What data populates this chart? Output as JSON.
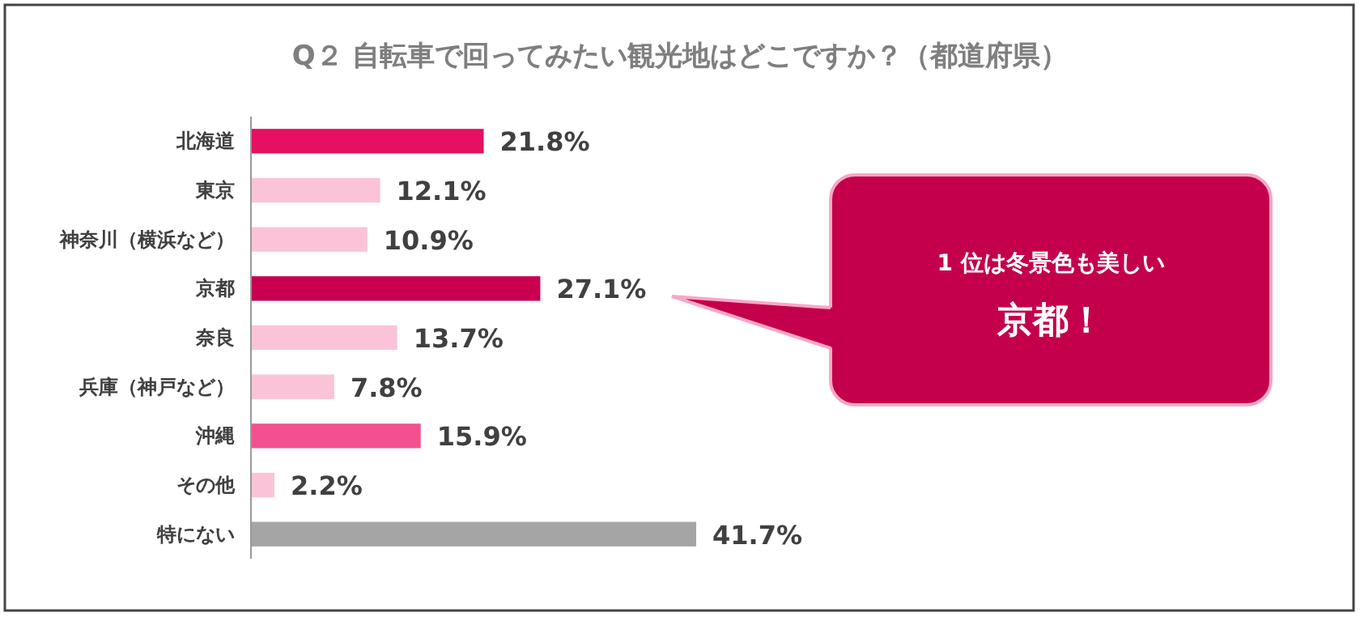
{
  "chart_data": {
    "type": "bar",
    "orientation": "horizontal",
    "title": "Q２ 自転車で回ってみたい観光地はどこですか？（都道府県）",
    "categories": [
      "北海道",
      "東京",
      "神奈川（横浜など）",
      "京都",
      "奈良",
      "兵庫（神戸など）",
      "沖縄",
      "その他",
      "特にない"
    ],
    "values": [
      21.8,
      12.1,
      10.9,
      27.1,
      13.7,
      7.8,
      15.9,
      2.2,
      41.7
    ],
    "colors": [
      "#e5105f",
      "#fac3d8",
      "#fac3d8",
      "#c8004f",
      "#fac3d8",
      "#fac3d8",
      "#f2508e",
      "#fac3d8",
      "#a5a5a5"
    ],
    "value_labels": [
      "21.8%",
      "12.1%",
      "10.9%",
      "27.1%",
      "13.7%",
      "7.8%",
      "15.9%",
      "2.2%",
      "41.7%"
    ],
    "annotations": [
      "1 位は冬景色も美しい",
      "京都！"
    ]
  }
}
